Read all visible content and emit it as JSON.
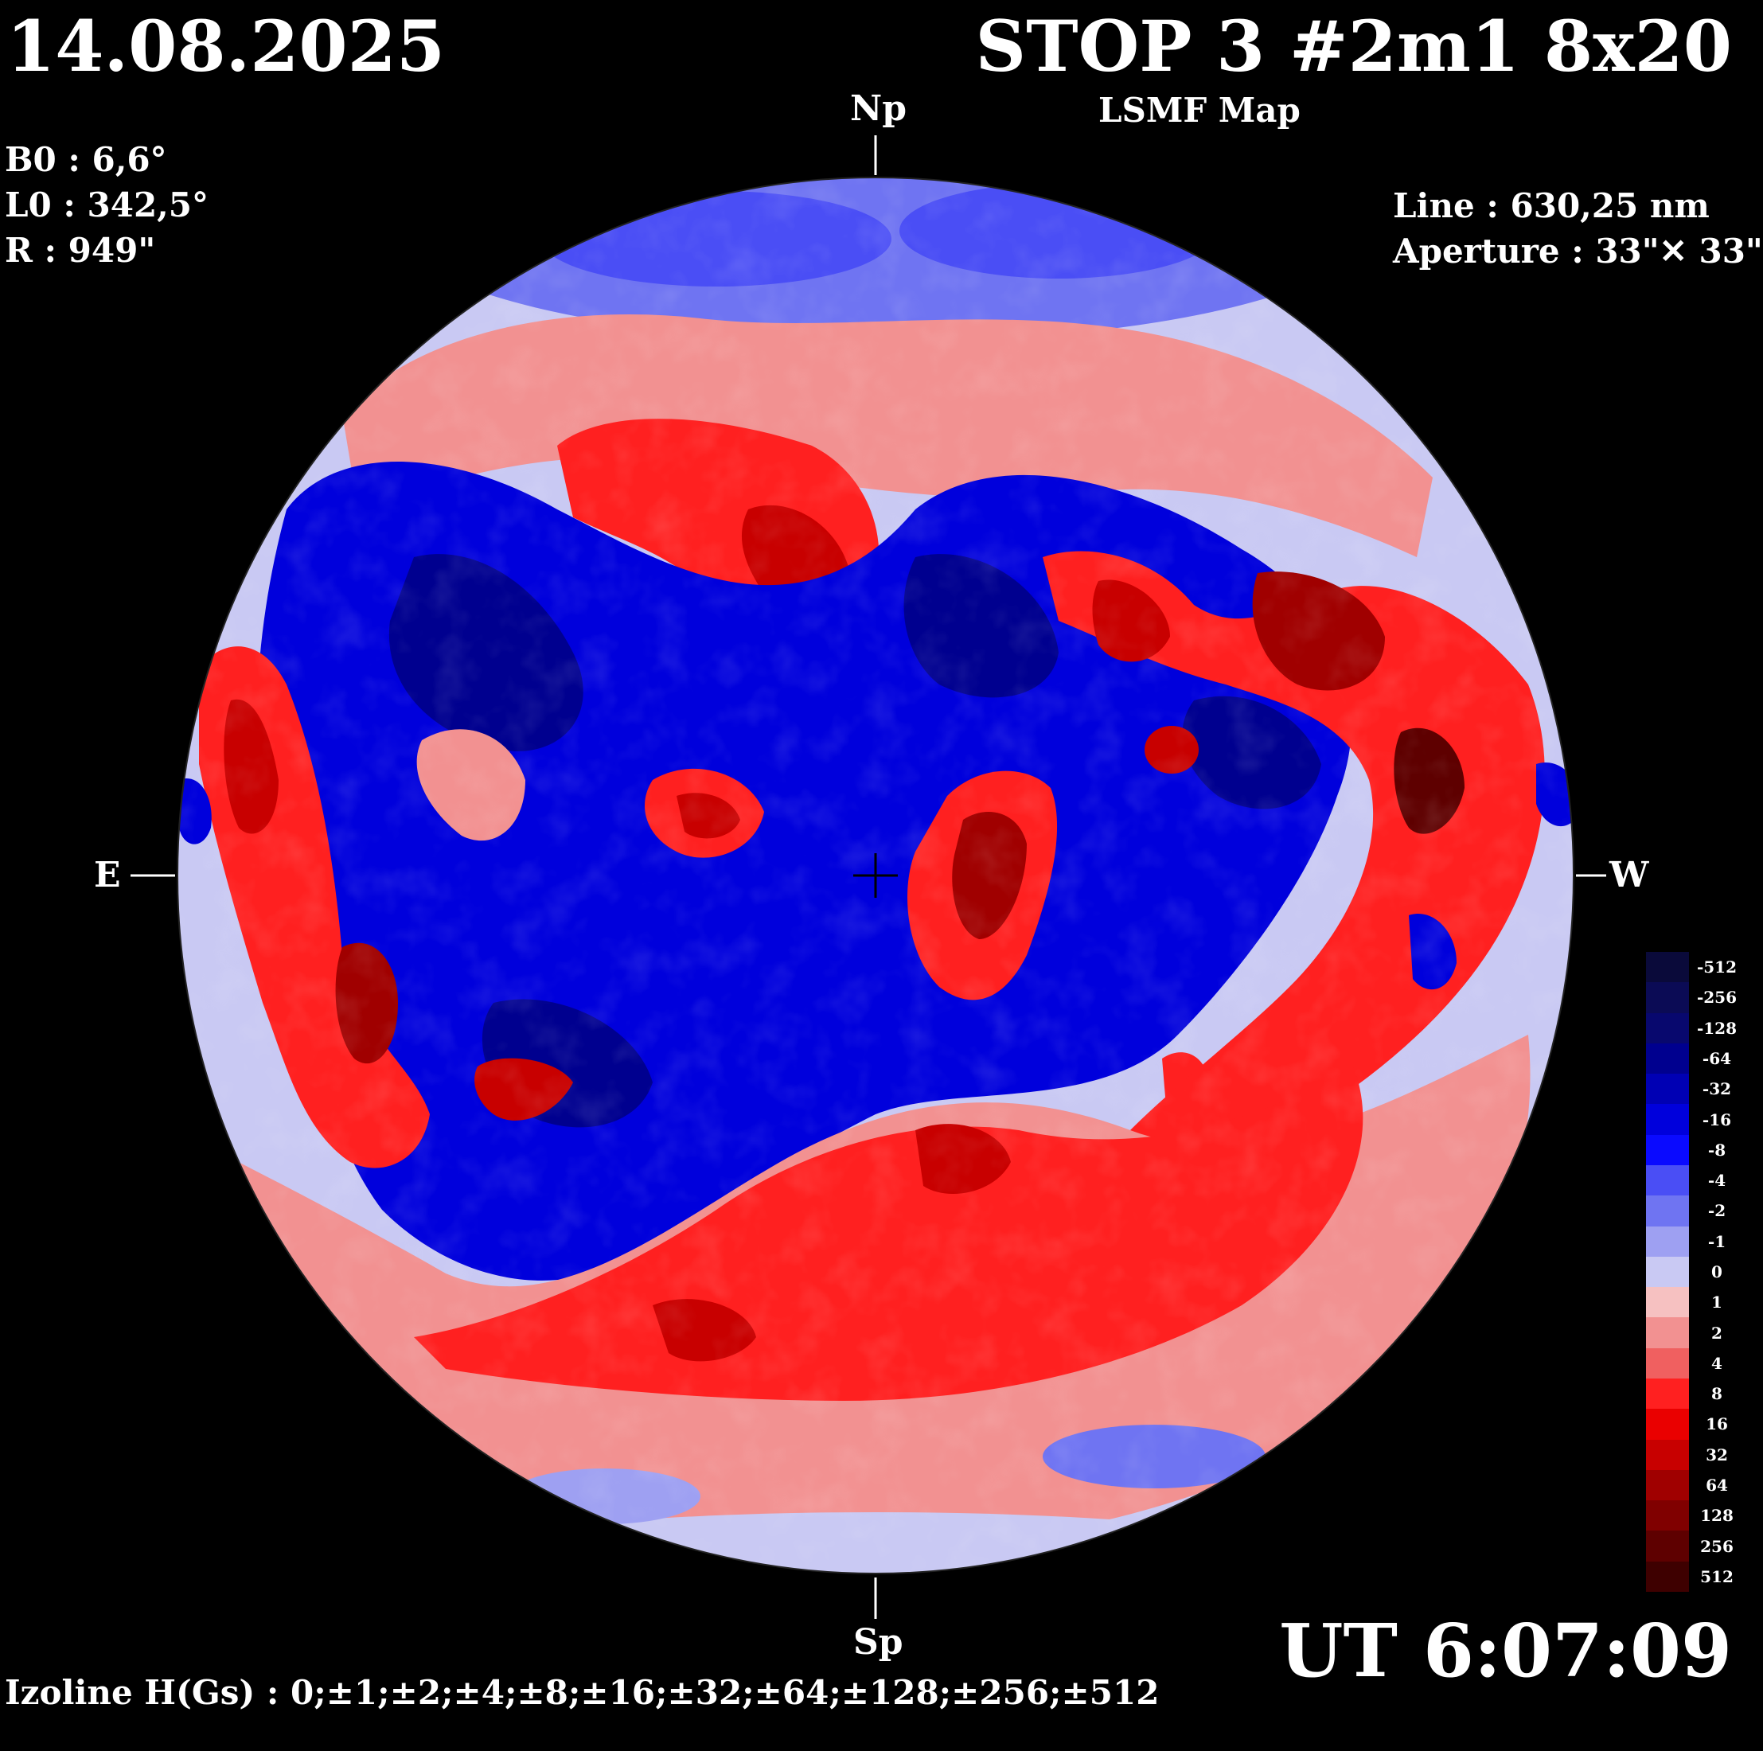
{
  "header": {
    "date": "14.08.2025",
    "title": "STOP 3 #2m1 8x20",
    "subtitle": "LSMF  Map"
  },
  "parameters": {
    "b0": "B0 : 6,6°",
    "l0": "L0 : 342,5°",
    "r": "R  : 949\""
  },
  "instrument": {
    "line": "Line :  630,25 nm",
    "aperture": "Aperture : 33\"✕ 33\""
  },
  "compass": {
    "north": "Np",
    "south": "Sp",
    "east": "E",
    "west": "W"
  },
  "time": "UT 6:07:09",
  "izoline_caption": "Izoline H(Gs) : 0;±1;±2;±4;±8;±16;±32;±64;±128;±256;±512",
  "legend": {
    "entries": [
      {
        "label": "-512",
        "color": "#0a0a3a"
      },
      {
        "label": "-256",
        "color": "#0b0b55"
      },
      {
        "label": "-128",
        "color": "#08086e"
      },
      {
        "label": "-64",
        "color": "#00008f"
      },
      {
        "label": "-32",
        "color": "#0000b4"
      },
      {
        "label": "-16",
        "color": "#0000dc"
      },
      {
        "label": "-8",
        "color": "#0a0aff"
      },
      {
        "label": "-4",
        "color": "#4a4ef5"
      },
      {
        "label": "-2",
        "color": "#6f74f2"
      },
      {
        "label": "-1",
        "color": "#9ea0f2"
      },
      {
        "label": "0",
        "color": "#c9c9f3"
      },
      {
        "label": "1",
        "color": "#f6c1c1"
      },
      {
        "label": "2",
        "color": "#f29191"
      },
      {
        "label": "4",
        "color": "#f06060"
      },
      {
        "label": "8",
        "color": "#ff2020"
      },
      {
        "label": "16",
        "color": "#ea0000"
      },
      {
        "label": "32",
        "color": "#c80000"
      },
      {
        "label": "64",
        "color": "#a00000"
      },
      {
        "label": "128",
        "color": "#800000"
      },
      {
        "label": "256",
        "color": "#5e0000"
      },
      {
        "label": "512",
        "color": "#3e0000"
      }
    ]
  },
  "map_colors": {
    "disk_base": "#c9c9f3",
    "blue_dark": "#00008f",
    "blue_mid": "#0000dc",
    "blue_light": "#6f74f2",
    "red_light": "#f29191",
    "red_mid": "#ff2020",
    "red_dark": "#a00000",
    "red_deep": "#5e0000",
    "zero_contour": "#ffffff"
  },
  "map_regions": [
    {
      "name": "north-polar-cap",
      "polarity": "negative",
      "level": "light"
    },
    {
      "name": "north-red-belt",
      "polarity": "positive",
      "level": "light"
    },
    {
      "name": "central-negative-region",
      "polarity": "negative",
      "level": "strong"
    },
    {
      "name": "east-limb-positive",
      "polarity": "positive",
      "level": "strong"
    },
    {
      "name": "south-red-belt",
      "polarity": "positive",
      "level": "medium"
    },
    {
      "name": "south-polar-cap",
      "polarity": "negative",
      "level": "light"
    },
    {
      "name": "central-positive-patch",
      "polarity": "positive",
      "level": "strong"
    },
    {
      "name": "west-positive-region",
      "polarity": "positive",
      "level": "strong"
    }
  ]
}
